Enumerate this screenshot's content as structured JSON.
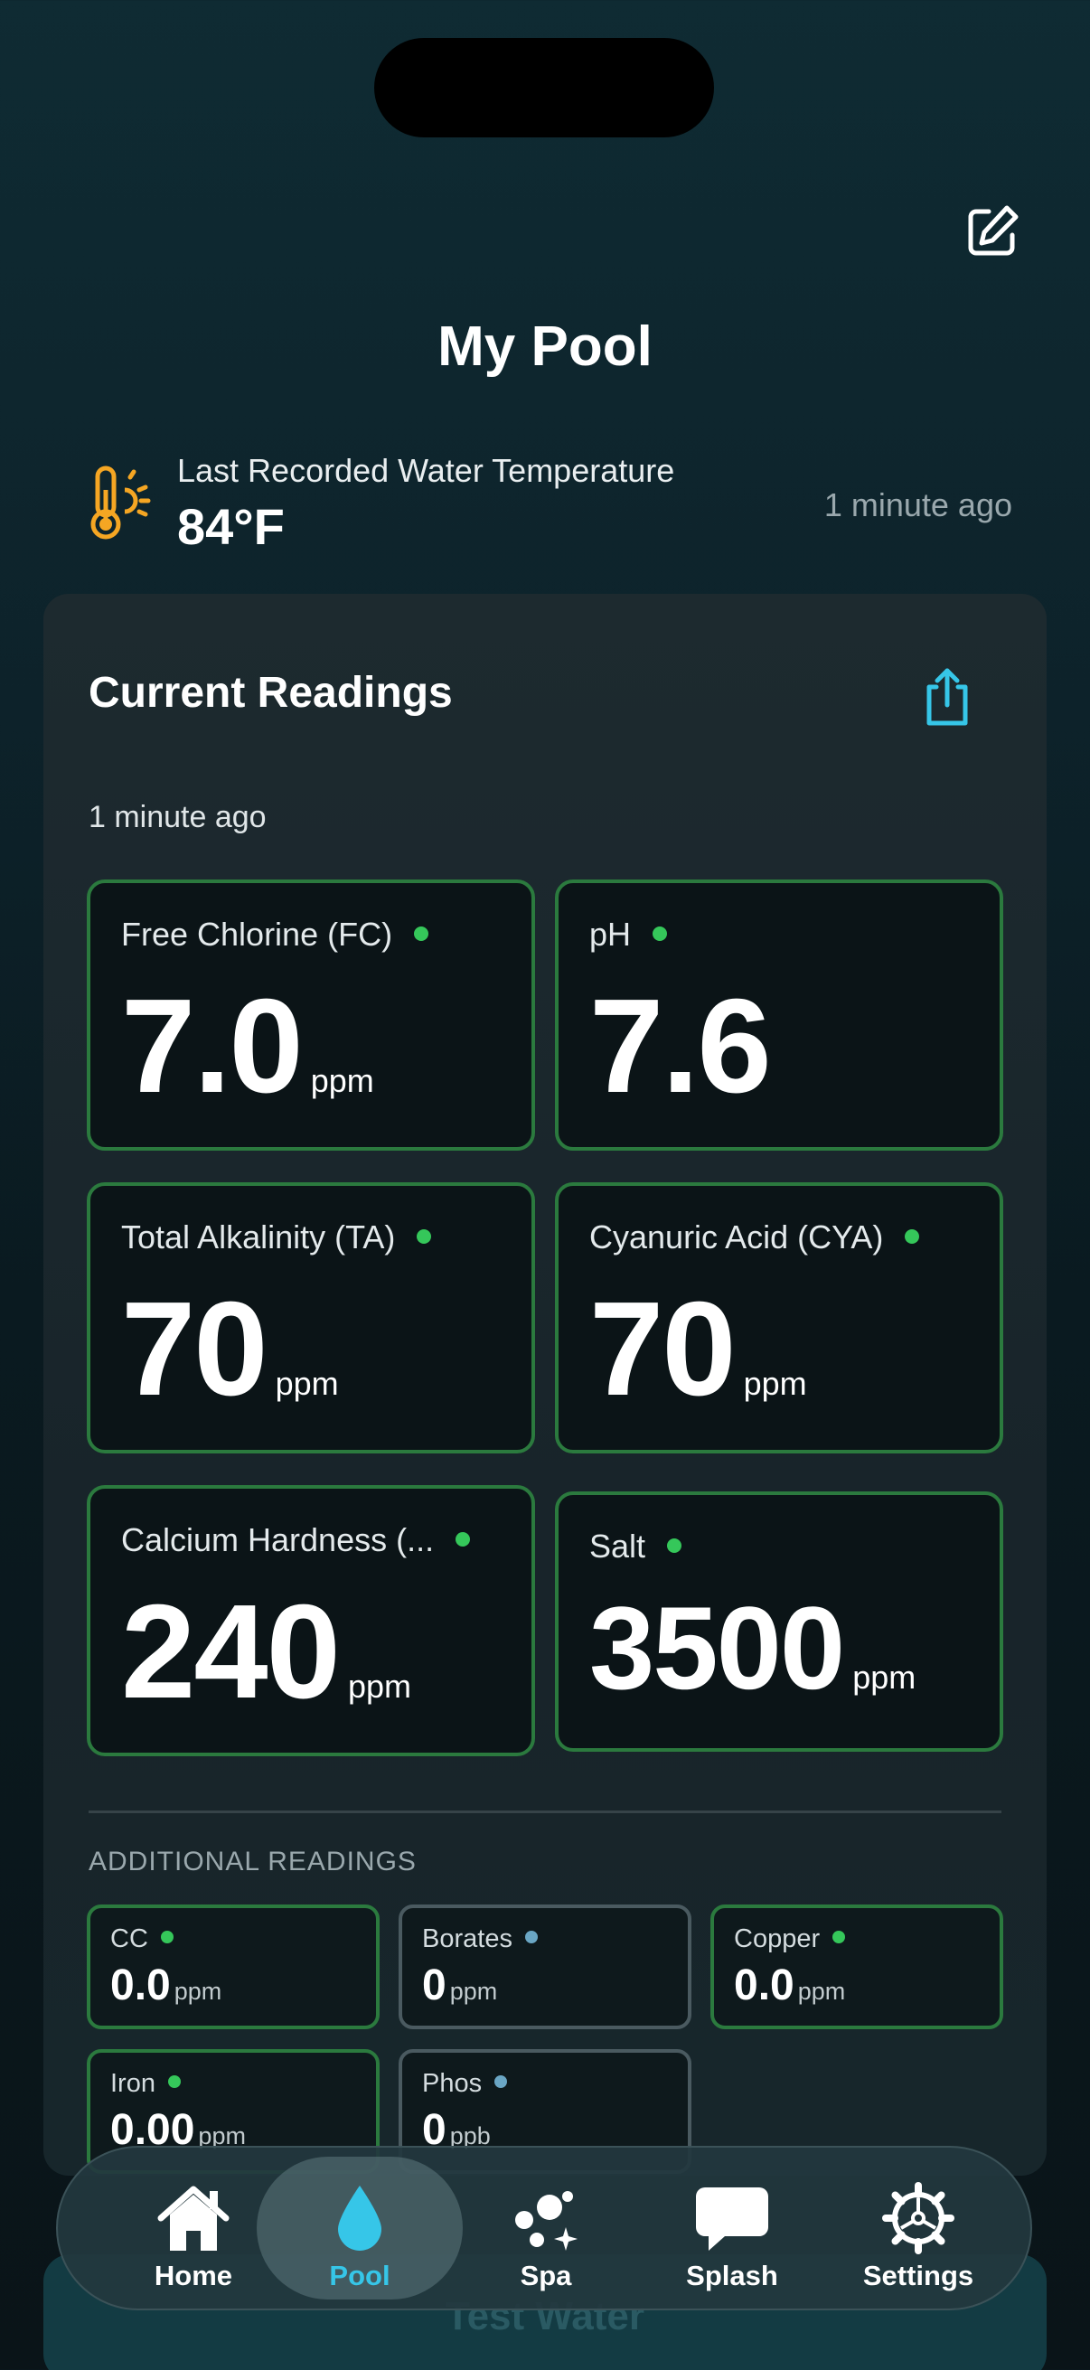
{
  "header": {
    "title": "My Pool",
    "edit_icon": "edit-icon"
  },
  "temperature": {
    "label": "Last Recorded Water Temperature",
    "value": "84°F",
    "time": "1 minute ago",
    "icon": "thermometer-sun-icon"
  },
  "readings": {
    "title": "Current Readings",
    "time": "1 minute ago",
    "share_icon": "share-icon",
    "tiles": [
      {
        "label": "Free Chlorine (FC)",
        "value": "7.0",
        "unit": "ppm",
        "status": "green"
      },
      {
        "label": "pH",
        "value": "7.6",
        "unit": "",
        "status": "green"
      },
      {
        "label": "Total Alkalinity (TA)",
        "value": "70",
        "unit": "ppm",
        "status": "green"
      },
      {
        "label": "Cyanuric Acid (CYA)",
        "value": "70",
        "unit": "ppm",
        "status": "green"
      },
      {
        "label": "Calcium Hardness (...",
        "value": "240",
        "unit": "ppm",
        "status": "green"
      },
      {
        "label": "Salt",
        "value": "3500",
        "unit": "ppm",
        "status": "green"
      }
    ]
  },
  "additional": {
    "title": "ADDITIONAL READINGS",
    "items": [
      {
        "label": "CC",
        "value": "0.0",
        "unit": "ppm",
        "status": "green"
      },
      {
        "label": "Borates",
        "value": "0",
        "unit": "ppm",
        "status": "blue"
      },
      {
        "label": "Copper",
        "value": "0.0",
        "unit": "ppm",
        "status": "green"
      },
      {
        "label": "Iron",
        "value": "0.00",
        "unit": "ppm",
        "status": "green"
      },
      {
        "label": "Phos",
        "value": "0",
        "unit": "ppb",
        "status": "blue"
      }
    ]
  },
  "test_button": {
    "label": "Test Water"
  },
  "tabs": [
    {
      "label": "Home",
      "icon": "house-icon"
    },
    {
      "label": "Pool",
      "icon": "water-drop-icon",
      "active": true
    },
    {
      "label": "Spa",
      "icon": "bubbles-icon"
    },
    {
      "label": "Splash",
      "icon": "chat-bubble-icon"
    },
    {
      "label": "Settings",
      "icon": "gear-icon"
    }
  ],
  "colors": {
    "accent": "#36c6e8",
    "status_green": "#35c75a",
    "status_blue": "#6aa6c4",
    "tile_border": "#2b7a3e",
    "thermometer": "#f5a623"
  }
}
